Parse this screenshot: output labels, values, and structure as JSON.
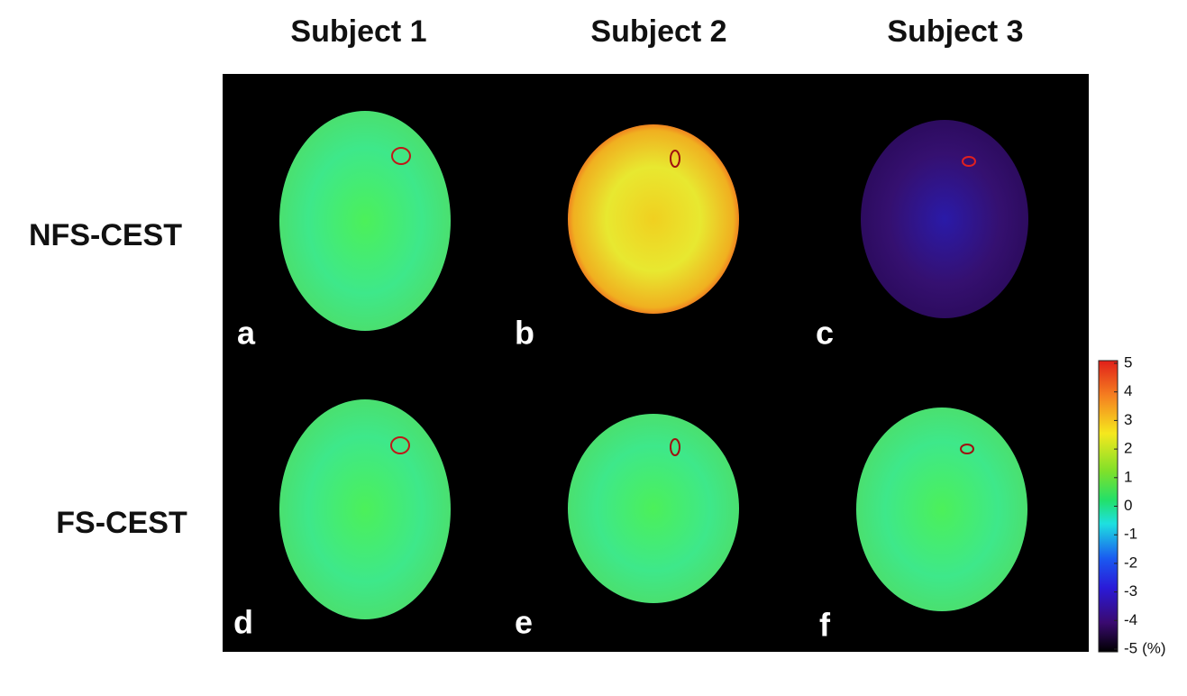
{
  "columns": [
    "Subject 1",
    "Subject 2",
    "Subject 3"
  ],
  "rows": [
    "NFS-CEST",
    "FS-CEST"
  ],
  "panels": [
    "a",
    "b",
    "c",
    "d",
    "e",
    "f"
  ],
  "colorbar": {
    "ticks": [
      5,
      4,
      3,
      2,
      1,
      0,
      -1,
      -2,
      -3,
      -4,
      -5
    ],
    "unit": "(%)"
  }
}
